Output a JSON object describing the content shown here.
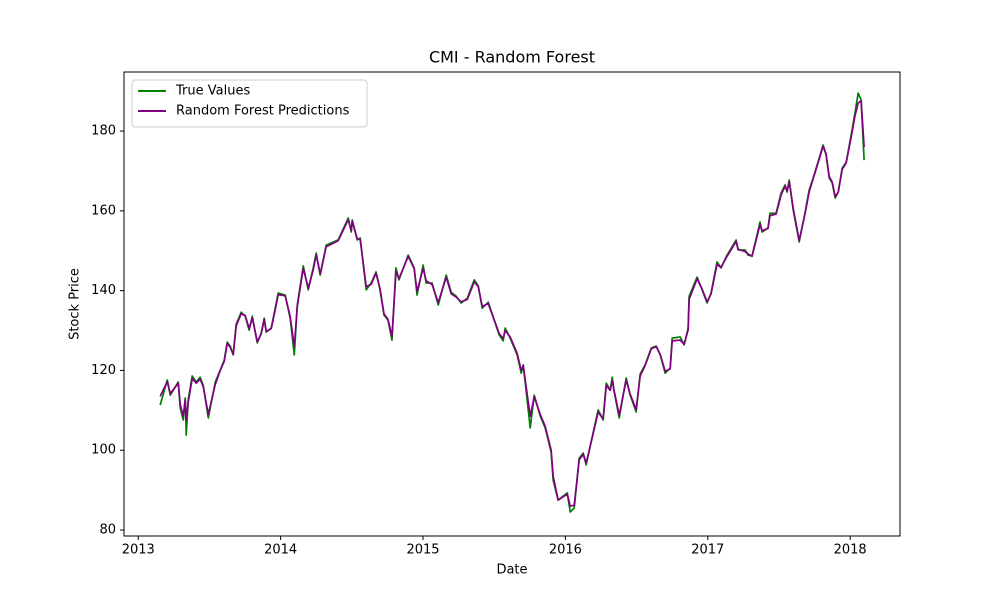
{
  "chart_data": {
    "type": "line",
    "title": "CMI - Random Forest",
    "xlabel": "Date",
    "ylabel": "Stock Price",
    "x": [
      2013.154,
      2013.204,
      2013.225,
      2013.281,
      2013.295,
      2013.316,
      2013.33,
      2013.337,
      2013.351,
      2013.379,
      2013.407,
      2013.435,
      2013.456,
      2013.492,
      2013.541,
      2013.576,
      2013.604,
      2013.625,
      2013.646,
      2013.667,
      2013.688,
      2013.723,
      2013.751,
      2013.779,
      2013.801,
      2013.836,
      2013.864,
      2013.885,
      2013.899,
      2013.934,
      2013.962,
      2013.983,
      2014.032,
      2014.067,
      2014.096,
      2014.117,
      2014.159,
      2014.194,
      2014.229,
      2014.25,
      2014.278,
      2014.32,
      2014.404,
      2014.475,
      2014.496,
      2014.503,
      2014.538,
      2014.559,
      2014.601,
      2014.636,
      2014.67,
      2014.698,
      2014.726,
      2014.754,
      2014.782,
      2014.81,
      2014.831,
      2014.896,
      2014.938,
      2014.958,
      2015.001,
      2015.022,
      2015.064,
      2015.107,
      2015.163,
      2015.198,
      2015.233,
      2015.268,
      2015.311,
      2015.36,
      2015.388,
      2015.416,
      2015.458,
      2015.535,
      2015.563,
      2015.577,
      2015.612,
      2015.661,
      2015.69,
      2015.704,
      2015.753,
      2015.781,
      2015.823,
      2015.858,
      2015.9,
      2015.914,
      2015.949,
      2016.013,
      2016.034,
      2016.062,
      2016.097,
      2016.125,
      2016.146,
      2016.202,
      2016.23,
      2016.265,
      2016.287,
      2016.315,
      2016.329,
      2016.343,
      2016.378,
      2016.427,
      2016.455,
      2016.497,
      2016.525,
      2016.56,
      2016.603,
      2016.638,
      2016.666,
      2016.701,
      2016.736,
      2016.75,
      2016.806,
      2016.834,
      2016.862,
      2016.869,
      2016.925,
      2016.96,
      2016.995,
      2017.023,
      2017.065,
      2017.093,
      2017.135,
      2017.199,
      2017.213,
      2017.262,
      2017.283,
      2017.311,
      2017.367,
      2017.381,
      2017.423,
      2017.437,
      2017.48,
      2017.515,
      2017.543,
      2017.557,
      2017.572,
      2017.6,
      2017.642,
      2017.684,
      2017.712,
      2017.74,
      2017.81,
      2017.831,
      2017.853,
      2017.874,
      2017.895,
      2017.916,
      2017.944,
      2017.972,
      2018.007,
      2018.035,
      2018.056,
      2018.077,
      2018.098
    ],
    "series": [
      {
        "name": "True Values",
        "color": "#008000",
        "values": [
          111.3,
          117.6,
          113.8,
          117.1,
          110.6,
          107.6,
          113.1,
          103.8,
          112.6,
          118.6,
          117.1,
          118.3,
          116.3,
          108.1,
          117.1,
          120.1,
          122.6,
          127.1,
          126.1,
          123.9,
          131.6,
          134.6,
          133.6,
          130.1,
          133.6,
          126.9,
          129.4,
          133.1,
          129.6,
          130.6,
          135.6,
          139.4,
          138.9,
          133.1,
          123.9,
          136.4,
          146.2,
          140.2,
          145.7,
          149.4,
          143.9,
          151.4,
          152.7,
          158.2,
          154.7,
          157.7,
          152.7,
          153.2,
          140.2,
          141.9,
          144.7,
          140.2,
          133.9,
          132.6,
          127.6,
          145.7,
          142.7,
          148.9,
          145.7,
          138.9,
          146.4,
          141.9,
          141.9,
          136.4,
          143.9,
          139.6,
          138.6,
          136.9,
          138.1,
          142.7,
          141.2,
          135.6,
          137.1,
          128.9,
          127.4,
          130.6,
          128.1,
          123.9,
          119.3,
          121.4,
          105.6,
          113.8,
          108.6,
          105.6,
          99.5,
          92.5,
          87.5,
          89.3,
          84.5,
          85.5,
          98.0,
          99.3,
          96.3,
          105.6,
          110.1,
          107.6,
          116.8,
          115.1,
          118.3,
          114.6,
          108.1,
          118.1,
          113.8,
          109.6,
          119.1,
          121.4,
          125.6,
          126.1,
          123.9,
          119.3,
          120.6,
          128.1,
          128.4,
          126.4,
          130.6,
          138.6,
          143.4,
          140.2,
          136.9,
          139.4,
          147.2,
          145.7,
          148.9,
          152.7,
          150.2,
          150.2,
          148.9,
          148.7,
          157.2,
          154.7,
          155.7,
          159.4,
          159.4,
          164.5,
          166.5,
          164.7,
          167.7,
          160.2,
          152.2,
          159.7,
          165.2,
          168.2,
          176.5,
          174.0,
          168.2,
          167.0,
          163.2,
          164.7,
          170.7,
          172.2,
          179.0,
          184.8,
          189.5,
          187.8,
          172.7
        ]
      },
      {
        "name": "Random Forest Predictions",
        "color": "#800080",
        "values": [
          113.5,
          117.2,
          114.2,
          116.8,
          111.5,
          108.5,
          112.5,
          107.5,
          112.0,
          118.0,
          116.8,
          117.8,
          116.0,
          109.0,
          116.5,
          120.0,
          122.3,
          126.8,
          125.8,
          124.0,
          131.2,
          134.2,
          133.8,
          130.5,
          133.2,
          127.2,
          129.2,
          132.8,
          129.8,
          130.5,
          135.2,
          139.0,
          138.7,
          133.5,
          126.0,
          136.0,
          145.6,
          140.6,
          145.2,
          149.0,
          144.2,
          151.0,
          152.5,
          157.8,
          155.0,
          157.4,
          153.0,
          152.8,
          141.0,
          141.6,
          144.4,
          140.5,
          134.2,
          132.8,
          128.5,
          144.8,
          143.0,
          148.6,
          145.5,
          139.8,
          145.6,
          142.5,
          141.5,
          137.0,
          143.4,
          139.2,
          138.4,
          137.2,
          137.8,
          142.2,
          141.0,
          136.0,
          136.8,
          129.2,
          128.0,
          130.0,
          128.4,
          124.3,
          120.0,
          121.2,
          108.5,
          113.4,
          109.0,
          106.0,
          100.0,
          93.5,
          87.5,
          89.0,
          86.0,
          86.2,
          97.6,
          99.0,
          96.8,
          105.2,
          109.6,
          107.8,
          116.2,
          115.0,
          117.5,
          114.8,
          108.8,
          117.6,
          114.0,
          110.2,
          118.6,
          121.2,
          125.4,
          126.0,
          124.0,
          119.8,
          120.4,
          127.4,
          127.6,
          126.6,
          130.2,
          137.8,
          143.0,
          140.4,
          137.2,
          139.2,
          146.6,
          145.8,
          148.6,
          152.3,
          150.4,
          149.8,
          149.2,
          148.6,
          156.6,
          155.0,
          155.6,
          158.8,
          159.2,
          164.0,
          166.2,
          165.0,
          167.4,
          160.6,
          152.6,
          159.4,
          164.8,
          168.0,
          176.2,
          174.2,
          168.6,
          167.2,
          163.6,
          164.6,
          170.4,
          172.0,
          178.5,
          184.0,
          187.0,
          187.6,
          176.0
        ]
      }
    ],
    "xlim": [
      2012.9,
      2018.35
    ],
    "xticks": [
      2013,
      2014,
      2015,
      2016,
      2017,
      2018
    ],
    "ylim": [
      78.5,
      194.8
    ],
    "yticks": [
      80,
      100,
      120,
      140,
      160,
      180
    ],
    "legend": "upper left",
    "grid": false
  }
}
